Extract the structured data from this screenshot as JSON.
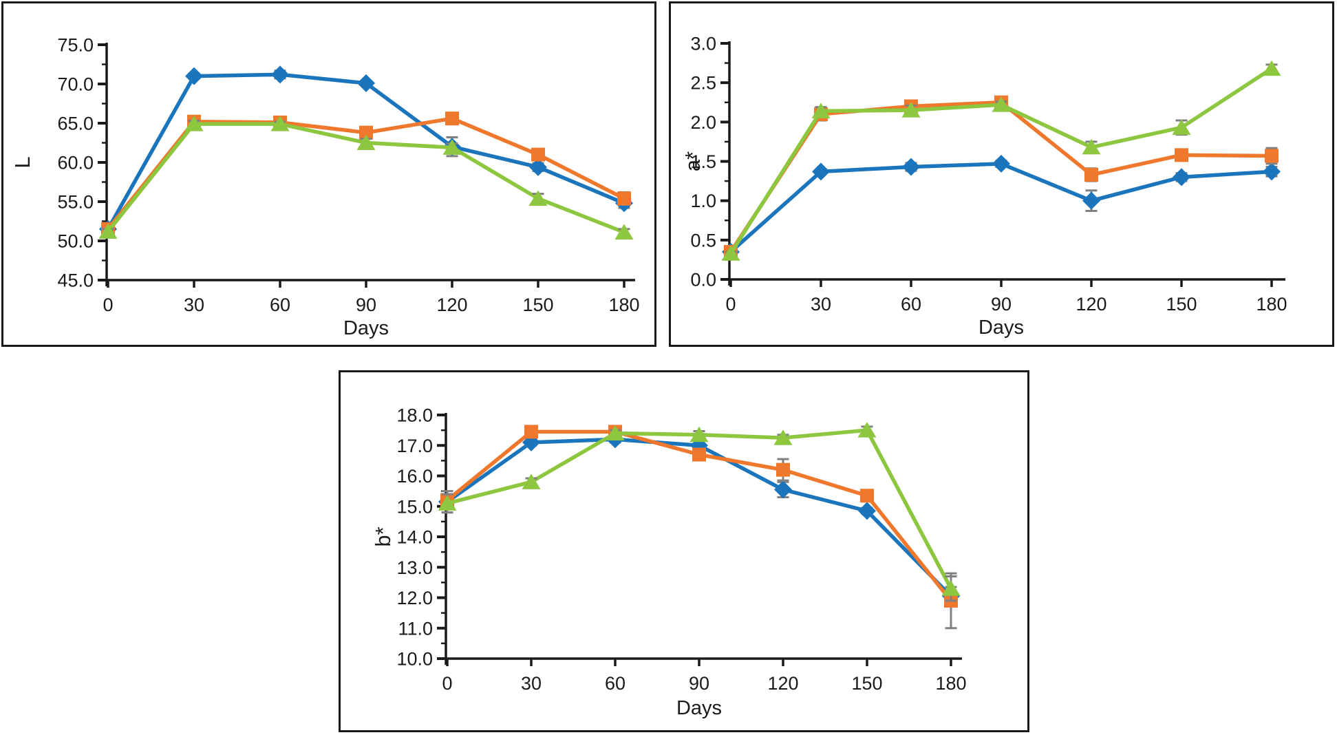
{
  "figure": {
    "background": "#ffffff",
    "description": "Three-panel line figure: colour parameters L, a* and b* versus storage time in days, three series with error bars, no legend, no gridlines"
  },
  "colors": {
    "axis": "#1a1a1a",
    "panel_border": "#1a1a1a",
    "error_bar": "#808080",
    "series_blue": "#1B75BC",
    "series_orange": "#F0782D",
    "series_green": "#8DC63F"
  },
  "chart_data": [
    {
      "type": "line",
      "panel": "top-left",
      "title": "",
      "xlabel": "Days",
      "ylabel": "L",
      "x": [
        0,
        30,
        60,
        90,
        120,
        150,
        180
      ],
      "xtick_labels": [
        "0",
        "30",
        "60",
        "90",
        "120",
        "150",
        "180"
      ],
      "ylim": [
        45.0,
        75.0
      ],
      "ytick_step": 5.0,
      "ytick_minor_step": 2.5,
      "ytick_labels": [
        "45.0",
        "50.0",
        "55.0",
        "60.0",
        "65.0",
        "70.0",
        "75.0"
      ],
      "grid": false,
      "legend": "none",
      "error_bars": true,
      "series": [
        {
          "name": "blue-diamond",
          "marker": "diamond",
          "color": "#1B75BC",
          "values": [
            51.5,
            71.0,
            71.2,
            70.1,
            62.0,
            59.4,
            54.8
          ],
          "errors": [
            0.2,
            0.3,
            0.5,
            0.3,
            1.2,
            0.5,
            0.6
          ]
        },
        {
          "name": "orange-square",
          "marker": "square",
          "color": "#F0782D",
          "values": [
            51.5,
            65.2,
            65.1,
            63.8,
            65.6,
            61.0,
            55.4
          ],
          "errors": [
            0.3,
            0.3,
            0.3,
            0.4,
            0.4,
            0.6,
            0.8
          ]
        },
        {
          "name": "green-triangle",
          "marker": "triangle",
          "color": "#8DC63F",
          "values": [
            51.2,
            64.9,
            64.9,
            62.5,
            61.9,
            55.4,
            51.1
          ],
          "errors": [
            0.3,
            0.4,
            0.3,
            0.5,
            0.5,
            0.6,
            0.4
          ]
        }
      ]
    },
    {
      "type": "line",
      "panel": "top-right",
      "title": "",
      "xlabel": "Days",
      "ylabel": "a*",
      "x": [
        0,
        30,
        60,
        90,
        120,
        150,
        180
      ],
      "xtick_labels": [
        "0",
        "30",
        "60",
        "90",
        "120",
        "150",
        "180"
      ],
      "ylim": [
        0.0,
        3.0
      ],
      "ytick_step": 0.5,
      "ytick_minor_step": 0.25,
      "ytick_labels": [
        "0.0",
        "0.5",
        "1.0",
        "1.5",
        "2.0",
        "2.5",
        "3.0"
      ],
      "grid": false,
      "legend": "none",
      "error_bars": true,
      "series": [
        {
          "name": "blue-diamond",
          "marker": "diamond",
          "color": "#1B75BC",
          "values": [
            0.35,
            1.37,
            1.43,
            1.47,
            1.0,
            1.3,
            1.37
          ],
          "errors": [
            0.02,
            0.03,
            0.05,
            0.04,
            0.13,
            0.05,
            0.06
          ]
        },
        {
          "name": "orange-square",
          "marker": "square",
          "color": "#F0782D",
          "values": [
            0.35,
            2.1,
            2.2,
            2.25,
            1.33,
            1.58,
            1.57
          ],
          "errors": [
            0.02,
            0.08,
            0.05,
            0.06,
            0.08,
            0.06,
            0.1
          ]
        },
        {
          "name": "green-triangle",
          "marker": "triangle",
          "color": "#8DC63F",
          "values": [
            0.33,
            2.14,
            2.15,
            2.22,
            1.68,
            1.93,
            2.68
          ],
          "errors": [
            0.02,
            0.05,
            0.06,
            0.04,
            0.07,
            0.09,
            0.05
          ]
        }
      ]
    },
    {
      "type": "line",
      "panel": "bottom-center",
      "title": "",
      "xlabel": "Days",
      "ylabel": "b*",
      "x": [
        0,
        30,
        60,
        90,
        120,
        150,
        180
      ],
      "xtick_labels": [
        "0",
        "30",
        "60",
        "90",
        "120",
        "150",
        "180"
      ],
      "ylim": [
        10.0,
        18.0
      ],
      "ytick_step": 1.0,
      "ytick_minor_step": 0.5,
      "ytick_labels": [
        "10.0",
        "11.0",
        "12.0",
        "13.0",
        "14.0",
        "15.0",
        "16.0",
        "17.0",
        "18.0"
      ],
      "grid": false,
      "legend": "none",
      "error_bars": true,
      "series": [
        {
          "name": "blue-diamond",
          "marker": "diamond",
          "color": "#1B75BC",
          "values": [
            15.15,
            17.1,
            17.2,
            17.0,
            15.55,
            14.85,
            12.05
          ],
          "errors": [
            0.35,
            0.1,
            0.1,
            0.15,
            0.25,
            0.1,
            0.3
          ]
        },
        {
          "name": "orange-square",
          "marker": "square",
          "color": "#F0782D",
          "values": [
            15.2,
            17.45,
            17.45,
            16.7,
            16.2,
            15.35,
            11.9
          ],
          "errors": [
            0.2,
            0.1,
            0.1,
            0.1,
            0.35,
            0.1,
            0.9
          ]
        },
        {
          "name": "green-triangle",
          "marker": "triangle",
          "color": "#8DC63F",
          "values": [
            15.1,
            15.8,
            17.4,
            17.35,
            17.25,
            17.5,
            12.3
          ],
          "errors": [
            0.3,
            0.12,
            0.1,
            0.12,
            0.1,
            0.12,
            0.4
          ]
        }
      ]
    }
  ]
}
